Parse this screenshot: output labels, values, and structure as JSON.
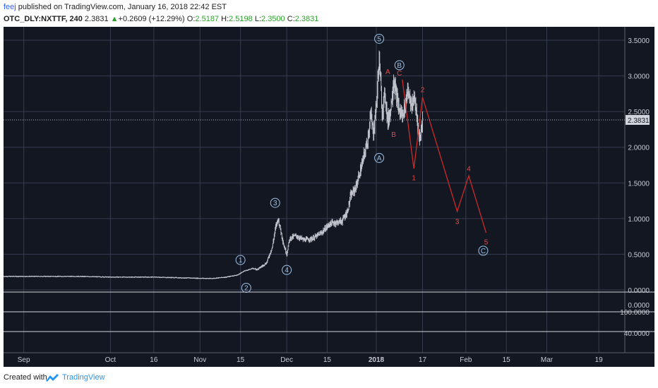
{
  "header": {
    "author": "feej",
    "published_text": " published on TradingView.com, January 16, 2018 22:42 EST",
    "symbol": "OTC_DLY:NXTTF, 240",
    "last": "2.3831",
    "change_arrow": "▲",
    "change": "+0.2609 (+12.29%)",
    "o_label": "O:",
    "o_value": "2.5187",
    "h_label": "H:",
    "h_value": "2.5198",
    "l_label": "L:",
    "l_value": "2.3500",
    "c_label": "C:",
    "c_value": "2.3831"
  },
  "footer": {
    "created_with": "Created with",
    "brand": "TradingView"
  },
  "colors": {
    "background": "#131722",
    "grid": "#363c4e",
    "text": "#c8cbd3",
    "price_line": "#b2b5be",
    "price_tag_bg": "#d1d4dc",
    "wave_blue": "#9dc2e8",
    "projection_red": "#cc2a2a",
    "green": "#2ca02c",
    "brand": "#2196f3"
  },
  "chart_data": {
    "type": "candlestick",
    "title": "",
    "ylim": [
      0,
      3.6
    ],
    "price_ticks": [
      "3.5000",
      "3.0000",
      "2.5000",
      "2.0000",
      "1.5000",
      "1.0000",
      "0.5000",
      "0.0000"
    ],
    "current_price": "2.3831",
    "sub_panels": [
      {
        "label": "0.0000"
      },
      {
        "label": "100.0000"
      },
      {
        "label": "40.0000"
      }
    ],
    "time_ticks": [
      "Sep",
      "Oct",
      "16",
      "Nov",
      "15",
      "Dec",
      "15",
      "2018",
      "17",
      "Feb",
      "15",
      "Mar",
      "19"
    ],
    "price_path": [
      [
        "2017-08-25",
        0.19
      ],
      [
        "2017-09-05",
        0.19
      ],
      [
        "2017-09-20",
        0.19
      ],
      [
        "2017-10-01",
        0.18
      ],
      [
        "2017-10-16",
        0.18
      ],
      [
        "2017-10-25",
        0.17
      ],
      [
        "2017-11-05",
        0.16
      ],
      [
        "2017-11-10",
        0.18
      ],
      [
        "2017-11-14",
        0.21
      ],
      [
        "2017-11-16",
        0.26
      ],
      [
        "2017-11-19",
        0.3
      ],
      [
        "2017-11-21",
        0.29
      ],
      [
        "2017-11-24",
        0.38
      ],
      [
        "2017-11-26",
        0.6
      ],
      [
        "2017-11-27",
        0.85
      ],
      [
        "2017-11-28",
        1.0
      ],
      [
        "2017-11-29",
        0.82
      ],
      [
        "2017-11-30",
        0.62
      ],
      [
        "2017-12-01",
        0.5
      ],
      [
        "2017-12-02",
        0.72
      ],
      [
        "2017-12-04",
        0.76
      ],
      [
        "2017-12-07",
        0.7
      ],
      [
        "2017-12-10",
        0.72
      ],
      [
        "2017-12-13",
        0.8
      ],
      [
        "2017-12-16",
        0.93
      ],
      [
        "2017-12-20",
        0.96
      ],
      [
        "2017-12-22",
        1.1
      ],
      [
        "2017-12-23",
        1.3
      ],
      [
        "2017-12-25",
        1.45
      ],
      [
        "2017-12-27",
        1.75
      ],
      [
        "2017-12-29",
        2.1
      ],
      [
        "2017-12-30",
        2.45
      ],
      [
        "2017-12-31",
        2.2
      ],
      [
        "2018-01-01",
        2.6
      ],
      [
        "2018-01-02",
        3.25
      ],
      [
        "2018-01-03",
        2.5
      ],
      [
        "2018-01-04",
        2.75
      ],
      [
        "2018-01-05",
        2.35
      ],
      [
        "2018-01-06",
        2.55
      ],
      [
        "2018-01-07",
        2.95
      ],
      [
        "2018-01-08",
        2.7
      ],
      [
        "2018-01-09",
        2.5
      ],
      [
        "2018-01-10",
        2.45
      ],
      [
        "2018-01-11",
        2.6
      ],
      [
        "2018-01-12",
        2.85
      ],
      [
        "2018-01-13",
        2.55
      ],
      [
        "2018-01-14",
        2.7
      ],
      [
        "2018-01-15",
        2.45
      ],
      [
        "2018-01-16",
        2.1
      ],
      [
        "2018-01-17",
        2.38
      ]
    ],
    "wave_labels": [
      {
        "text": "1",
        "date": "2017-11-15",
        "price": 0.42
      },
      {
        "text": "2",
        "date": "2017-11-17",
        "price": 0.03
      },
      {
        "text": "3",
        "date": "2017-11-27",
        "price": 1.22
      },
      {
        "text": "4",
        "date": "2017-12-01",
        "price": 0.28
      },
      {
        "text": "5",
        "date": "2018-01-02",
        "price": 3.52
      },
      {
        "text": "A",
        "date": "2018-01-02",
        "price": 1.85
      },
      {
        "text": "B",
        "date": "2018-01-09",
        "price": 3.15
      },
      {
        "text": "C",
        "date": "2018-02-07",
        "price": 0.55
      }
    ],
    "red_labels": [
      {
        "text": "A",
        "date": "2018-01-05",
        "price": 3.06
      },
      {
        "text": "C",
        "date": "2018-01-09",
        "price": 3.04
      },
      {
        "text": "B",
        "date": "2018-01-07",
        "price": 2.18
      },
      {
        "text": "1",
        "date": "2018-01-14",
        "price": 1.57
      },
      {
        "text": "2",
        "date": "2018-01-17",
        "price": 2.81
      },
      {
        "text": "3",
        "date": "2018-01-29",
        "price": 0.96
      },
      {
        "text": "4",
        "date": "2018-02-02",
        "price": 1.7
      },
      {
        "text": "5",
        "date": "2018-02-08",
        "price": 0.67
      }
    ],
    "projection": [
      [
        "2018-01-10",
        2.95
      ],
      [
        "2018-01-14",
        1.7
      ],
      [
        "2018-01-17",
        2.7
      ],
      [
        "2018-01-29",
        1.1
      ],
      [
        "2018-02-02",
        1.6
      ],
      [
        "2018-02-08",
        0.8
      ]
    ]
  }
}
